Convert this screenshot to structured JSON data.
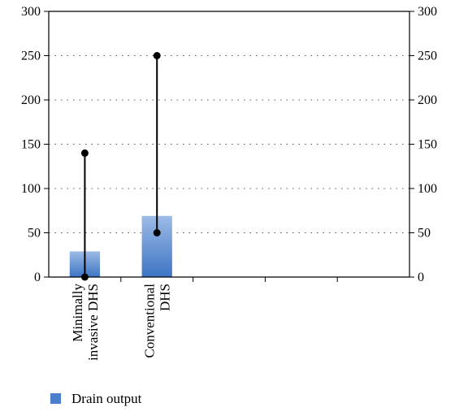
{
  "chart_data": {
    "type": "bar",
    "categories": [
      [
        "Minimally",
        "invasive DHS"
      ],
      [
        "Conventional",
        "DHS"
      ]
    ],
    "empty_category_slots": 3,
    "series": [
      {
        "name": "Drain output",
        "values": [
          29,
          69
        ]
      }
    ],
    "range_markers": [
      {
        "min": 0,
        "max": 140
      },
      {
        "min": 50,
        "max": 250
      }
    ],
    "ylim": [
      0,
      300
    ],
    "yticks": [
      0,
      50,
      100,
      150,
      200,
      250,
      300
    ],
    "y_axis_right_mirror": true,
    "grid": "horizontal dotted",
    "legend_position": "bottom-left",
    "colors": {
      "bar_top": "#9dbbe6",
      "bar_bottom": "#3d74c3",
      "legend_swatch": "#4a7fcc",
      "axis": "#000000",
      "grid": "#555555",
      "marker": "#000000"
    },
    "xlabel": "",
    "ylabel": "",
    "title": ""
  }
}
